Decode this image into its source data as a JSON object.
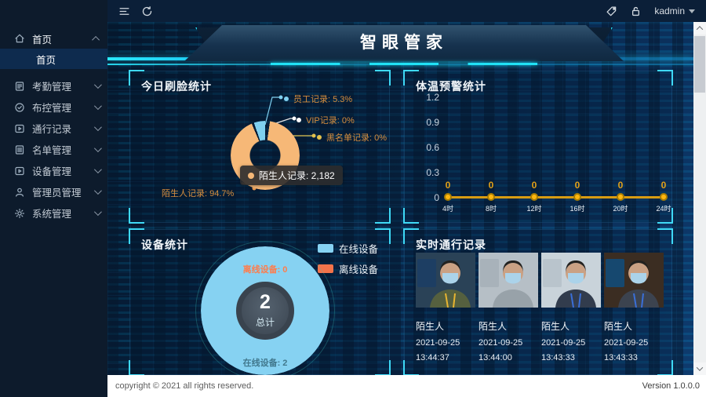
{
  "topbar": {
    "user": "kadmin"
  },
  "sidebar": {
    "home": {
      "label": "首页",
      "sub": {
        "label": "首页"
      }
    },
    "items": [
      {
        "label": "考勤管理"
      },
      {
        "label": "布控管理"
      },
      {
        "label": "通行记录"
      },
      {
        "label": "名单管理"
      },
      {
        "label": "设备管理"
      },
      {
        "label": "管理员管理"
      },
      {
        "label": "系统管理"
      }
    ]
  },
  "banner": {
    "title": "智眼管家"
  },
  "panels": {
    "face_title": "今日刷脸统计",
    "temp_title": "体温预警统计",
    "device_title": "设备统计",
    "records_title": "实时通行记录"
  },
  "chart_data": [
    {
      "type": "pie",
      "title": "今日刷脸统计",
      "slices": [
        {
          "label": "员工记录",
          "percent": 5.3,
          "color": "#7fd0f0",
          "callout": "员工记录: 5.3%"
        },
        {
          "label": "VIP记录",
          "percent": 0,
          "color": "#ffffff",
          "callout": "VIP记录: 0%"
        },
        {
          "label": "黑名单记录",
          "percent": 0,
          "color": "#e3c04c",
          "callout": "黑名单记录: 0%"
        },
        {
          "label": "陌生人记录",
          "percent": 94.7,
          "value": 2182,
          "color": "#f6b877",
          "callout": "陌生人记录: 94.7%"
        }
      ],
      "tooltip_text": "陌生人记录: 2,182",
      "legend_position": "none"
    },
    {
      "type": "line",
      "title": "体温预警统计",
      "categories": [
        "4时",
        "8时",
        "12时",
        "16时",
        "20时",
        "24时"
      ],
      "values": [
        0,
        0,
        0,
        0,
        0,
        0
      ],
      "yticks": [
        "0",
        "0.3",
        "0.6",
        "0.9",
        "1.2"
      ],
      "ylim": [
        0,
        1.2
      ],
      "line_color": "#d89c12",
      "point_color": "#ffb70f",
      "grid": false
    },
    {
      "type": "pie",
      "title": "设备统计",
      "slices": [
        {
          "label": "在线设备",
          "value": 2,
          "color": "#86d2f2"
        },
        {
          "label": "离线设备",
          "value": 0,
          "color": "#f3734a"
        }
      ],
      "center": {
        "value": "2",
        "label": "总计"
      },
      "top_annotation": "离线设备: 0",
      "bottom_annotation": "在线设备: 2",
      "legend_position": "top-right"
    }
  ],
  "records": [
    {
      "name": "陌生人",
      "date": "2021-09-25",
      "time": "13:44:37"
    },
    {
      "name": "陌生人",
      "date": "2021-09-25",
      "time": "13:44:00"
    },
    {
      "name": "陌生人",
      "date": "2021-09-25",
      "time": "13:43:33"
    },
    {
      "name": "陌生人",
      "date": "2021-09-25",
      "time": "13:43:33"
    }
  ],
  "footer": {
    "copyright": "copyright © 2021 all rights reserved.",
    "version": "Version 1.0.0.0"
  }
}
